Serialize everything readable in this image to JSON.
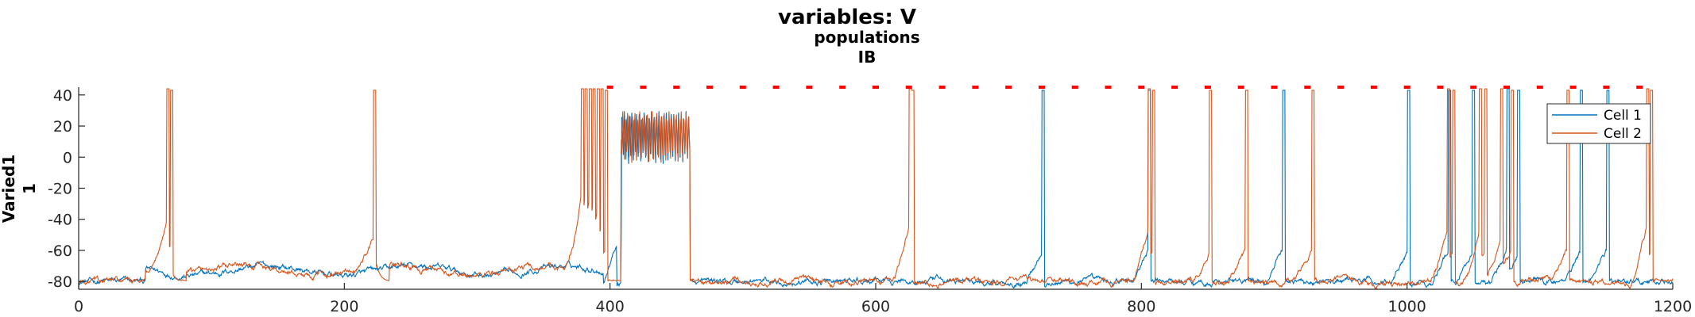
{
  "chart_data": {
    "type": "line",
    "title": "variables: V",
    "subtitle_lines": [
      "populations",
      "IB"
    ],
    "ylabel_lines": [
      "Varied1",
      "1"
    ],
    "xlabel": "",
    "xlim": [
      0,
      1200
    ],
    "ylim": [
      -85,
      45
    ],
    "x_ticks": [
      0,
      200,
      400,
      600,
      800,
      1000,
      1200
    ],
    "y_ticks": [
      40,
      20,
      0,
      -20,
      -40,
      -60,
      -80
    ],
    "grid": false,
    "legend_position": "top-right",
    "baseline_mv": -80,
    "series": [
      {
        "name": "Cell 1",
        "color": "#0072BD",
        "spike_times_ms": [
          725,
          805,
          906,
          1000,
          1031,
          1049,
          1075,
          1083,
          1130,
          1150
        ],
        "burst_window_ms": [
          408,
          460
        ],
        "burst_spike_count": 28
      },
      {
        "name": "Cell 2",
        "color": "#D95319",
        "spike_times_ms": [
          66,
          69,
          222,
          378,
          381,
          384,
          387,
          390,
          393,
          396,
          625,
          627,
          805,
          808,
          851,
          878,
          928,
          1030,
          1034,
          1054,
          1058,
          1070,
          1078,
          1120,
          1180,
          1183
        ],
        "burst_window_ms": [
          405,
          460
        ],
        "burst_spike_count": 30
      }
    ],
    "event_markers": {
      "color": "#FF0000",
      "y_value": 45,
      "times_ms": [
        400,
        425,
        450,
        475,
        500,
        525,
        550,
        575,
        600,
        625,
        650,
        675,
        700,
        725,
        750,
        775,
        800,
        825,
        850,
        875,
        900,
        925,
        950,
        975,
        1000,
        1025,
        1050,
        1075,
        1100,
        1125,
        1150,
        1175
      ]
    }
  }
}
